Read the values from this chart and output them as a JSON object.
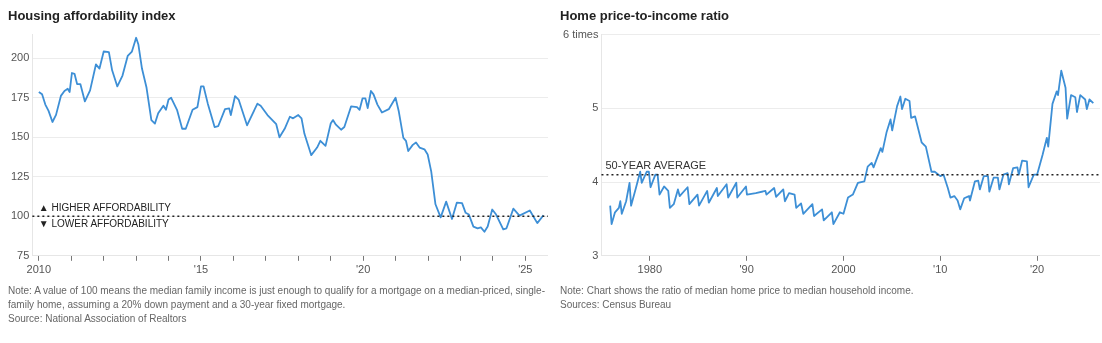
{
  "chart_data": [
    {
      "type": "line",
      "title": "Housing affordability index",
      "xlim": [
        2009.8,
        2025.7
      ],
      "ylim": [
        75,
        215
      ],
      "xticks": [
        {
          "value": 2010,
          "label": "2010"
        },
        {
          "value": 2011,
          "label": null
        },
        {
          "value": 2012,
          "label": null
        },
        {
          "value": 2013,
          "label": null
        },
        {
          "value": 2014,
          "label": null
        },
        {
          "value": 2015,
          "label": "'15"
        },
        {
          "value": 2016,
          "label": null
        },
        {
          "value": 2017,
          "label": null
        },
        {
          "value": 2018,
          "label": null
        },
        {
          "value": 2019,
          "label": null
        },
        {
          "value": 2020,
          "label": "'20"
        },
        {
          "value": 2021,
          "label": null
        },
        {
          "value": 2022,
          "label": null
        },
        {
          "value": 2023,
          "label": null
        },
        {
          "value": 2024,
          "label": null
        },
        {
          "value": 2025,
          "label": "'25"
        }
      ],
      "yticks": [
        75,
        100,
        125,
        150,
        175,
        200
      ],
      "grid": "y",
      "legend": false,
      "series": [
        {
          "color": "#3d8fd6",
          "x": [
            2010.0,
            2010.1,
            2010.2,
            2010.3,
            2010.42,
            2010.53,
            2010.68,
            2010.79,
            2010.89,
            2010.95,
            2011.02,
            2011.1,
            2011.18,
            2011.28,
            2011.42,
            2011.58,
            2011.76,
            2011.87,
            2012.0,
            2012.16,
            2012.26,
            2012.42,
            2012.58,
            2012.74,
            2012.87,
            2013.0,
            2013.07,
            2013.18,
            2013.32,
            2013.47,
            2013.58,
            2013.68,
            2013.84,
            2013.92,
            2014.0,
            2014.08,
            2014.26,
            2014.42,
            2014.53,
            2014.74,
            2014.89,
            2015.0,
            2015.08,
            2015.21,
            2015.42,
            2015.53,
            2015.74,
            2015.87,
            2015.92,
            2016.05,
            2016.16,
            2016.42,
            2016.74,
            2016.84,
            2017.05,
            2017.32,
            2017.42,
            2017.58,
            2017.74,
            2017.84,
            2018.0,
            2018.1,
            2018.19,
            2018.4,
            2018.58,
            2018.68,
            2018.84,
            2019.0,
            2019.07,
            2019.16,
            2019.32,
            2019.42,
            2019.63,
            2019.81,
            2019.89,
            2019.98,
            2020.07,
            2020.14,
            2020.24,
            2020.32,
            2020.44,
            2020.58,
            2020.79,
            2021.0,
            2021.1,
            2021.24,
            2021.32,
            2021.39,
            2021.53,
            2021.63,
            2021.74,
            2021.89,
            2021.99,
            2022.1,
            2022.23,
            2022.39,
            2022.56,
            2022.74,
            2022.89,
            2023.05,
            2023.16,
            2023.26,
            2023.4,
            2023.53,
            2023.63,
            2023.74,
            2023.84,
            2023.98,
            2024.1,
            2024.32,
            2024.42,
            2024.63,
            2024.82,
            2025.14,
            2025.37,
            2025.56
          ],
          "values": [
            178.7,
            177.2,
            170.7,
            166.7,
            159.7,
            164.2,
            176.2,
            179.3,
            180.7,
            178.7,
            190.7,
            190.2,
            183.7,
            183.7,
            172.7,
            179.7,
            196.1,
            193.5,
            204.3,
            203.9,
            192.4,
            182.2,
            189.1,
            201.5,
            204.3,
            213,
            208.7,
            193.5,
            181.5,
            160.9,
            158.7,
            165.2,
            170,
            167.4,
            173.9,
            175,
            167.4,
            155.4,
            155.4,
            167.4,
            169.1,
            182.2,
            182.2,
            171.3,
            156.5,
            157,
            167.8,
            168.3,
            164.1,
            176.1,
            173.9,
            157.6,
            171.3,
            170,
            164.1,
            158.3,
            150,
            155.4,
            163,
            162,
            164.1,
            162,
            152.2,
            138.7,
            143.5,
            147.8,
            144.6,
            158.7,
            160.9,
            158,
            154.8,
            156.5,
            169.6,
            169.1,
            167.4,
            174.6,
            174.6,
            168.5,
            179.3,
            177.2,
            170.7,
            165.7,
            167.8,
            175,
            166.3,
            149.6,
            147.8,
            141.3,
            145.2,
            146.7,
            143.5,
            142.4,
            139.1,
            128.3,
            107.6,
            99.3,
            109.3,
            98.3,
            108.7,
            108.3,
            102.2,
            101.1,
            93.5,
            92.4,
            93,
            90.2,
            93.5,
            104.3,
            101.1,
            91.7,
            92.4,
            104.8,
            100.4,
            103.7,
            95.7,
            100.7
          ]
        }
      ],
      "ref_lines": [
        {
          "axis": "y",
          "value": 100,
          "color": "#222222",
          "line_style": "dotted"
        }
      ],
      "annotations": [
        {
          "text": "▲ HIGHER AFFORDABILITY",
          "x": 2010,
          "y": 100
        },
        {
          "text": "▼ LOWER AFFORDABILITY",
          "x": 2010,
          "y": 100
        },
        "Note: A value of 100 means the median family income is just enough to qualify for a mortgage on a median-priced, single-family home, assuming a 20% down payment and a 30-year fixed mortgage.",
        "Source: National Association of Realtors"
      ]
    },
    {
      "type": "line",
      "title": "Home price-to-income ratio",
      "xlim": [
        1975,
        2026.5
      ],
      "ylim": [
        3,
        6
      ],
      "xticks": [
        {
          "value": 1980,
          "label": "1980"
        },
        {
          "value": 1990,
          "label": "'90"
        },
        {
          "value": 2000,
          "label": "2000"
        },
        {
          "value": 2010,
          "label": "'10"
        },
        {
          "value": 2020,
          "label": "'20"
        }
      ],
      "yticks": [
        3,
        4,
        5,
        {
          "value": 6,
          "label": "6 times"
        }
      ],
      "grid": "y",
      "legend": false,
      "series": [
        {
          "color": "#3d8fd6",
          "x": [
            1975.9,
            1976.05,
            1976.4,
            1976.8,
            1976.95,
            1977.1,
            1977.55,
            1977.9,
            1978.06,
            1978.56,
            1979.0,
            1979.16,
            1979.67,
            1979.9,
            1980.07,
            1980.57,
            1980.8,
            1981.0,
            1981.47,
            1981.9,
            1982.07,
            1982.47,
            1982.9,
            1983.08,
            1983.9,
            1984.08,
            1984.92,
            1985.08,
            1985.92,
            1986.09,
            1986.92,
            1987.02,
            1987.93,
            1988.09,
            1988.93,
            1989.03,
            1989.93,
            1990.03,
            1990.94,
            1991.94,
            1992.04,
            1992.84,
            1993.04,
            1993.78,
            1993.95,
            1994.38,
            1994.95,
            1995.12,
            1995.62,
            1995.85,
            1996.79,
            1996.96,
            1997.79,
            1997.96,
            1998.8,
            1998.96,
            1999.63,
            2000.0,
            2000.47,
            2000.97,
            2001.49,
            2002.16,
            2002.5,
            2002.91,
            2003.11,
            2003.85,
            2004.02,
            2004.46,
            2004.86,
            2005.03,
            2005.54,
            2005.88,
            2006.05,
            2006.39,
            2006.82,
            2006.99,
            2007.4,
            2008.07,
            2008.51,
            2009.09,
            2009.43,
            2010.0,
            2010.34,
            2010.78,
            2011.05,
            2011.45,
            2011.79,
            2012.06,
            2012.47,
            2012.97,
            2013.07,
            2013.58,
            2013.92,
            2014.09,
            2014.49,
            2014.93,
            2015.07,
            2015.51,
            2015.95,
            2016.11,
            2016.52,
            2016.96,
            2017.09,
            2017.53,
            2017.97,
            2018.11,
            2018.45,
            2018.95,
            2019.12,
            2019.66,
            2020.0,
            2020.57,
            2021.01,
            2021.15,
            2021.59,
            2022.03,
            2022.16,
            2022.5,
            2022.94,
            2023.11,
            2023.51,
            2023.95,
            2024.12,
            2024.46,
            2024.97,
            2025.14,
            2025.41,
            2025.81
          ],
          "values": [
            3.68,
            3.43,
            3.59,
            3.65,
            3.74,
            3.57,
            3.74,
            3.99,
            3.68,
            3.92,
            4.14,
            3.99,
            4.14,
            4.14,
            3.93,
            4.1,
            4.1,
            3.83,
            3.94,
            3.88,
            3.65,
            3.7,
            3.9,
            3.81,
            3.93,
            3.7,
            3.83,
            3.68,
            3.88,
            3.72,
            3.92,
            3.81,
            3.97,
            3.79,
            3.99,
            3.79,
            3.94,
            3.83,
            3.85,
            3.88,
            3.83,
            3.92,
            3.8,
            3.9,
            3.74,
            3.85,
            3.83,
            3.65,
            3.71,
            3.57,
            3.7,
            3.54,
            3.63,
            3.48,
            3.59,
            3.43,
            3.59,
            3.57,
            3.79,
            3.83,
            3.99,
            4.01,
            4.21,
            4.26,
            4.2,
            4.46,
            4.41,
            4.68,
            4.85,
            4.7,
            5.03,
            5.16,
            4.99,
            5.13,
            5.1,
            4.87,
            4.89,
            4.54,
            4.48,
            4.14,
            4.14,
            4.08,
            4.1,
            3.92,
            3.79,
            3.81,
            3.75,
            3.63,
            3.78,
            3.81,
            3.75,
            4.01,
            4.02,
            3.9,
            4.08,
            4.08,
            3.87,
            4.06,
            4.06,
            3.9,
            4.1,
            4.12,
            3.97,
            4.19,
            4.2,
            4.1,
            4.29,
            4.28,
            3.93,
            4.1,
            4.1,
            4.37,
            4.6,
            4.48,
            5.06,
            5.23,
            5.18,
            5.51,
            5.28,
            4.86,
            5.18,
            5.15,
            4.95,
            5.18,
            5.12,
            4.99,
            5.12,
            5.07
          ]
        }
      ],
      "ref_lines": [
        {
          "axis": "y",
          "value": 4.1,
          "label": "50-YEAR AVERAGE",
          "color": "#222222",
          "line_style": "dotted"
        }
      ],
      "annotations": [
        "Note: Chart shows the ratio of median home price to median household income.",
        "Sources: Census Bureau"
      ]
    }
  ]
}
